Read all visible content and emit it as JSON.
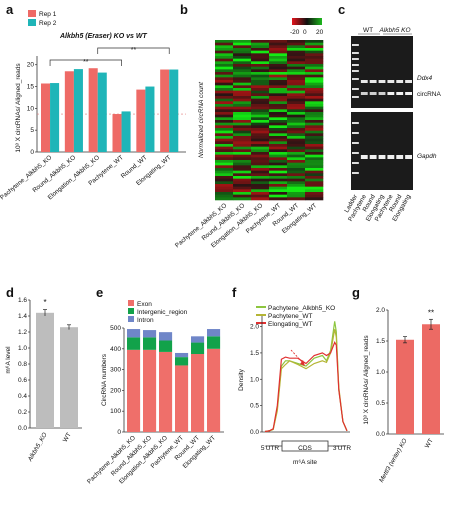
{
  "panels": {
    "a": {
      "label": "a",
      "title": "Alkbh5 (Eraser) KO vs WT",
      "sig_labels": [
        "**",
        "**"
      ]
    },
    "b": {
      "label": "b",
      "side_label": "Normalized circRNA count",
      "legend_values": [
        "-20",
        "0",
        "20"
      ]
    },
    "c": {
      "label": "c",
      "groups": [
        "WT",
        "Alkbh5 KO"
      ],
      "band_labels": [
        "Ddx4",
        "circRNA",
        "Gapdh"
      ],
      "lanes": [
        "Ladder",
        "Pachytene",
        "Round",
        "Elongating",
        "Pachytene",
        "Round",
        "Elongating"
      ]
    },
    "d": {
      "label": "d",
      "sig_label": "*"
    },
    "e": {
      "label": "e"
    },
    "f": {
      "label": "f",
      "axis_marks": [
        "5'UTR",
        "CDS",
        "3'UTR"
      ]
    },
    "g": {
      "label": "g",
      "sig_label": "**"
    }
  },
  "chart_data": [
    {
      "panel": "a",
      "type": "bar",
      "title": "Alkbh5 (Eraser) KO vs WT",
      "categories": [
        "Pachytene_Alkbh5_KO",
        "Round_Alkbh5_KO",
        "Elongation_Alkbh5_KO",
        "Pachytene_WT",
        "Round_WT",
        "Elongating_WT"
      ],
      "series": [
        {
          "name": "Rep 1",
          "color": "#ee6a66",
          "values": [
            15.7,
            18.5,
            19.2,
            8.7,
            14.3,
            18.9
          ]
        },
        {
          "name": "Rep 2",
          "color": "#1fb5b8",
          "values": [
            15.8,
            19.0,
            18.2,
            9.3,
            15.0,
            18.9
          ]
        }
      ],
      "ylabel": "10³ X circRNAs/ Aligned_reads",
      "ylim": [
        0,
        22
      ],
      "yticks": [
        "0",
        "5",
        "10",
        "15",
        "20"
      ],
      "dashed_ref": 8.7
    },
    {
      "panel": "b",
      "type": "heatmap",
      "color_scale": [
        "#e4141c",
        "#111111",
        "#1cb81c"
      ],
      "columns": [
        "Pachytene_Alkbh5_KO",
        "Round_Alkbh5_KO",
        "Elongation_Alkbh5_KO",
        "Pachytene_WT",
        "Round_WT",
        "Elongating_WT"
      ],
      "scale_range": [
        -20,
        20
      ]
    },
    {
      "panel": "d",
      "type": "bar",
      "categories": [
        "Alkbh5_KO",
        "WT"
      ],
      "values": [
        1.44,
        1.26
      ],
      "errors": [
        0.04,
        0.03
      ],
      "color": "#bdbdbd",
      "ylabel": "m⁶A level",
      "ylim": [
        0,
        1.6
      ],
      "yticks": [
        "0.0",
        "0.2",
        "0.4",
        "0.6",
        "0.8",
        "1.0",
        "1.2",
        "1.4",
        "1.6"
      ]
    },
    {
      "panel": "e",
      "type": "bar",
      "stacked": true,
      "categories": [
        "Pachytene_Alkbh5_KO",
        "Round_Alkbh5_KO",
        "Elongation_Alkbh5_KO",
        "Pachytene_WT",
        "Round_WT",
        "Elongating_WT"
      ],
      "series": [
        {
          "name": "Exon",
          "color": "#ef6f6a",
          "values": [
            395,
            395,
            385,
            320,
            375,
            400
          ]
        },
        {
          "name": "Intergenic_region",
          "color": "#12a24a",
          "values": [
            60,
            60,
            55,
            40,
            55,
            60
          ]
        },
        {
          "name": "Intron",
          "color": "#6f86c8",
          "values": [
            40,
            35,
            40,
            20,
            30,
            35
          ]
        }
      ],
      "ylabel": "CircRNA numbers",
      "ylim": [
        0,
        500
      ],
      "yticks": [
        "0",
        "100",
        "200",
        "300",
        "400",
        "500"
      ]
    },
    {
      "panel": "f",
      "type": "line",
      "x": [
        0.0,
        0.05,
        0.1,
        0.15,
        0.2,
        0.25,
        0.3,
        0.4,
        0.5,
        0.6,
        0.7,
        0.75,
        0.8,
        0.85,
        0.87,
        0.9,
        0.95,
        1.0
      ],
      "series": [
        {
          "name": "Pachytene_Alkbh5_KO",
          "color": "#8dc63f",
          "values": [
            0.01,
            0.02,
            0.05,
            0.45,
            1.25,
            1.35,
            1.35,
            1.3,
            1.25,
            1.4,
            1.45,
            1.35,
            1.55,
            2.1,
            1.9,
            0.8,
            0.2,
            0.02
          ]
        },
        {
          "name": "Pachytene_WT",
          "color": "#b5b535",
          "values": [
            0.01,
            0.02,
            0.05,
            0.4,
            1.2,
            1.28,
            1.35,
            1.28,
            1.2,
            1.3,
            1.35,
            1.32,
            1.5,
            1.95,
            1.8,
            0.85,
            0.2,
            0.02
          ]
        },
        {
          "name": "Elongating_WT",
          "color": "#e03030",
          "values": [
            0.01,
            0.02,
            0.06,
            0.5,
            1.38,
            1.42,
            1.4,
            1.4,
            1.3,
            1.45,
            1.5,
            1.45,
            1.5,
            1.7,
            1.65,
            0.8,
            0.2,
            0.02
          ]
        }
      ],
      "xlabel": "m⁶A site",
      "ylabel": "Density",
      "ylim": [
        0,
        2.2
      ],
      "yticks": [
        "0.0",
        "0.5",
        "1.0",
        "1.5",
        "2.0"
      ]
    },
    {
      "panel": "g",
      "type": "bar",
      "categories": [
        "Mettl3 (writer) KO",
        "WT"
      ],
      "values": [
        1.52,
        1.77
      ],
      "errors": [
        0.05,
        0.08
      ],
      "color": "#ec6a64",
      "ylabel": "10³ X circRNAs/ Aligned_reads",
      "ylim": [
        0,
        2.0
      ],
      "yticks": [
        "0.0",
        "0.5",
        "1.0",
        "1.5",
        "2.0"
      ]
    }
  ]
}
